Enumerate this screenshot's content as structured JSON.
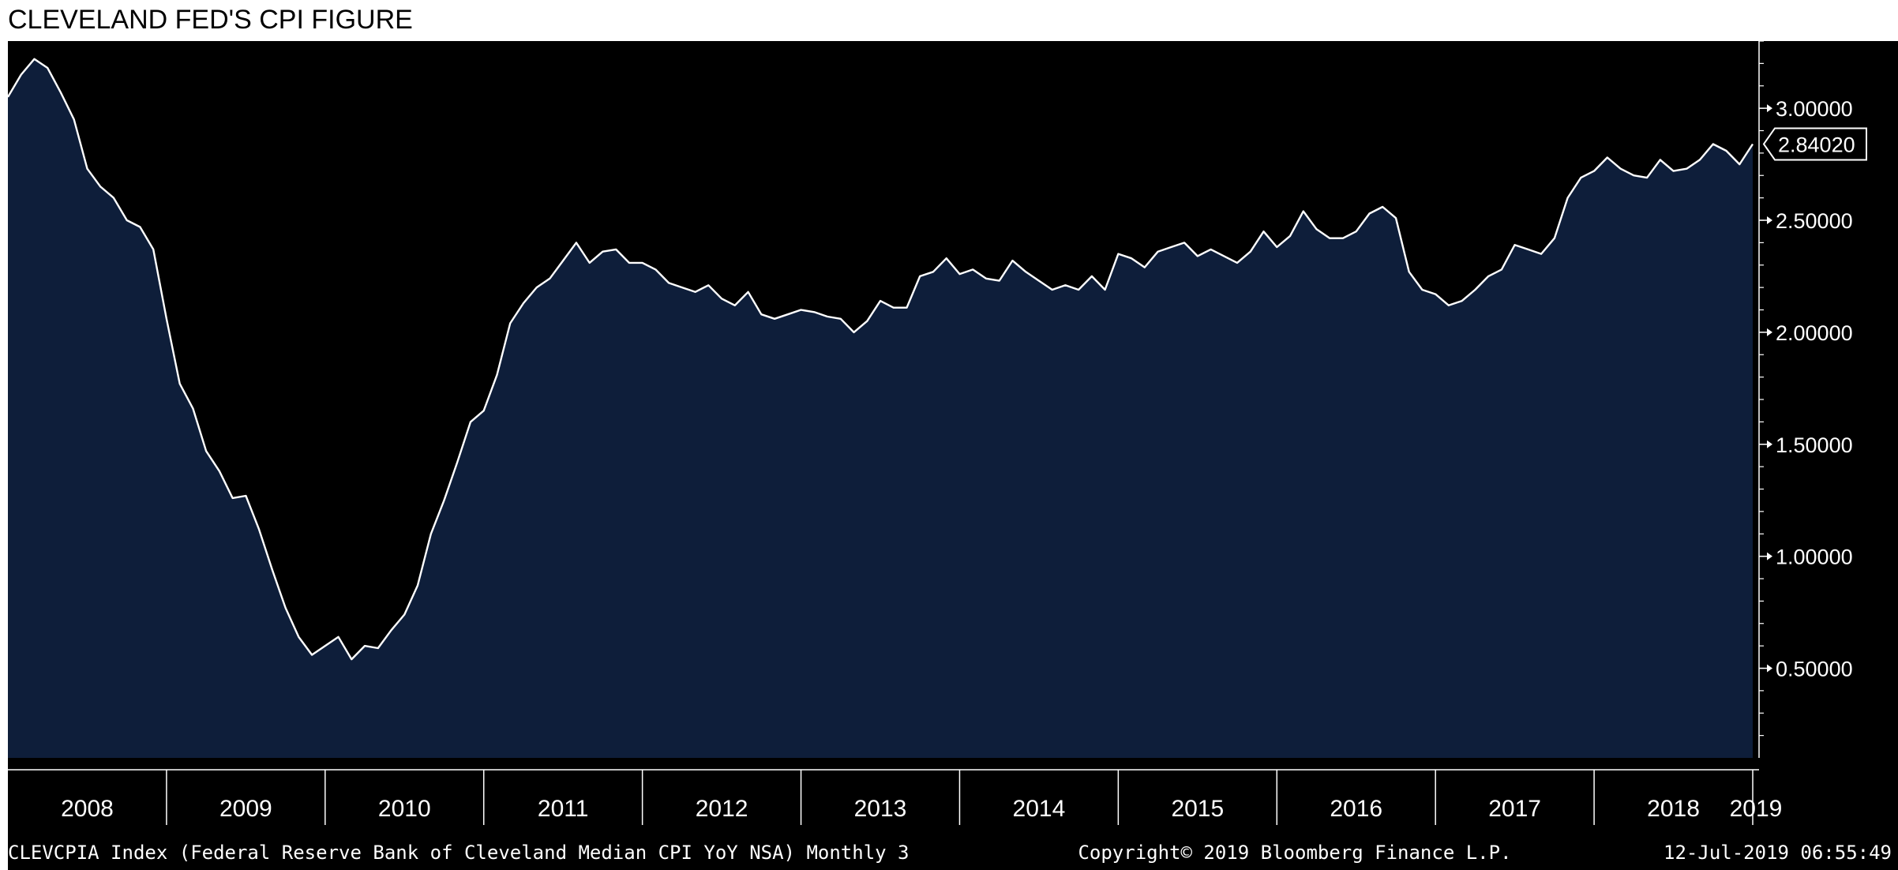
{
  "chart_data": {
    "type": "area",
    "title": "CLEVELAND FED'S CPI FIGURE",
    "xlabel": "",
    "ylabel": "",
    "ylim": [
      0.1,
      3.3
    ],
    "y_ticks": [
      0.5,
      1.0,
      1.5,
      2.0,
      2.5,
      3.0
    ],
    "y_tick_labels": [
      "0.50000",
      "1.00000",
      "1.50000",
      "2.00000",
      "2.50000",
      "3.00000"
    ],
    "year_labels": [
      "2008",
      "2009",
      "2010",
      "2011",
      "2012",
      "2013",
      "2014",
      "2015",
      "2016",
      "2017",
      "2018",
      "2019"
    ],
    "last_value": 2.8402,
    "last_value_label": "2.84020",
    "grid": false,
    "colors": {
      "fill": "#0e1e3a",
      "line": "#ffffff",
      "background": "#000000",
      "text": "#ffffff"
    },
    "series": [
      {
        "values": [
          3.05,
          3.15,
          3.22,
          3.18,
          3.07,
          2.95,
          2.73,
          2.65,
          2.6,
          2.5,
          2.47,
          2.37,
          2.06,
          1.77,
          1.66,
          1.47,
          1.38,
          1.26,
          1.27,
          1.12,
          0.94,
          0.77,
          0.64,
          0.56,
          0.6,
          0.64,
          0.54,
          0.6,
          0.59,
          0.67,
          0.74,
          0.87,
          1.1,
          1.25,
          1.42,
          1.6,
          1.65,
          1.81,
          2.04,
          2.13,
          2.2,
          2.24,
          2.32,
          2.4,
          2.31,
          2.36,
          2.37,
          2.31,
          2.31,
          2.28,
          2.22,
          2.2,
          2.18,
          2.21,
          2.15,
          2.12,
          2.18,
          2.08,
          2.06,
          2.08,
          2.1,
          2.09,
          2.07,
          2.06,
          2.0,
          2.05,
          2.14,
          2.11,
          2.11,
          2.25,
          2.27,
          2.33,
          2.26,
          2.28,
          2.24,
          2.23,
          2.32,
          2.27,
          2.23,
          2.19,
          2.21,
          2.19,
          2.25,
          2.19,
          2.35,
          2.33,
          2.29,
          2.36,
          2.38,
          2.4,
          2.34,
          2.37,
          2.34,
          2.31,
          2.36,
          2.45,
          2.38,
          2.43,
          2.54,
          2.46,
          2.42,
          2.42,
          2.45,
          2.53,
          2.56,
          2.51,
          2.27,
          2.19,
          2.17,
          2.12,
          2.14,
          2.19,
          2.25,
          2.28,
          2.39,
          2.37,
          2.35,
          2.42,
          2.6,
          2.69,
          2.72,
          2.78,
          2.73,
          2.7,
          2.69,
          2.77,
          2.72,
          2.73,
          2.77,
          2.84,
          2.81,
          2.75,
          2.84
        ]
      }
    ]
  },
  "footer": {
    "left": "CLEVCPIA Index (Federal Reserve Bank of Cleveland Median CPI YoY NSA)  Monthly 3",
    "middle": "Copyright© 2019 Bloomberg Finance L.P.",
    "right": "12-Jul-2019 06:55:49"
  }
}
